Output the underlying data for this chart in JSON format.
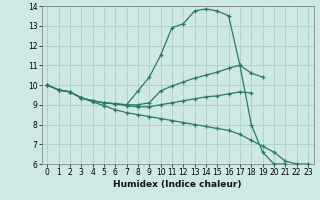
{
  "xlabel": "Humidex (Indice chaleur)",
  "bg_color": "#cde8e5",
  "grid_color": "#aad0cc",
  "line_color": "#2a7a6a",
  "xlim": [
    -0.5,
    23.5
  ],
  "ylim": [
    6,
    14
  ],
  "xticks": [
    0,
    1,
    2,
    3,
    4,
    5,
    6,
    7,
    8,
    9,
    10,
    11,
    12,
    13,
    14,
    15,
    16,
    17,
    18,
    19,
    20,
    21,
    22,
    23
  ],
  "yticks": [
    6,
    7,
    8,
    9,
    10,
    11,
    12,
    13,
    14
  ],
  "tick_fontsize": 5.5,
  "xlabel_fontsize": 6.5,
  "series": [
    {
      "x": [
        0,
        1,
        2,
        3,
        4,
        5,
        6,
        7,
        8,
        9,
        10,
        11,
        12,
        13,
        14,
        15,
        16,
        17,
        18,
        19,
        20,
        21
      ],
      "y": [
        10.0,
        9.75,
        9.65,
        9.35,
        9.2,
        9.1,
        9.05,
        9.0,
        9.7,
        10.4,
        11.5,
        12.9,
        13.1,
        13.75,
        13.85,
        13.75,
        13.5,
        11.0,
        8.0,
        6.6,
        6.0,
        6.0
      ]
    },
    {
      "x": [
        0,
        1,
        2,
        3,
        4,
        5,
        6,
        7,
        8,
        9,
        10,
        11,
        12,
        13,
        14,
        15,
        16,
        17,
        18,
        19
      ],
      "y": [
        10.0,
        9.75,
        9.65,
        9.35,
        9.2,
        9.1,
        9.05,
        9.0,
        9.0,
        9.1,
        9.7,
        9.95,
        10.15,
        10.35,
        10.5,
        10.65,
        10.85,
        11.0,
        10.6,
        10.4
      ]
    },
    {
      "x": [
        0,
        1,
        2,
        3,
        4,
        5,
        6,
        7,
        8,
        9,
        10,
        11,
        12,
        13,
        14,
        15,
        16,
        17,
        18
      ],
      "y": [
        10.0,
        9.75,
        9.65,
        9.35,
        9.2,
        9.1,
        9.05,
        8.95,
        8.9,
        8.9,
        9.0,
        9.1,
        9.2,
        9.3,
        9.4,
        9.45,
        9.55,
        9.65,
        9.6
      ]
    },
    {
      "x": [
        0,
        1,
        2,
        3,
        4,
        5,
        6,
        7,
        8,
        9,
        10,
        11,
        12,
        13,
        14,
        15,
        16,
        17,
        18,
        19,
        20,
        21,
        22,
        23
      ],
      "y": [
        10.0,
        9.75,
        9.65,
        9.35,
        9.15,
        8.95,
        8.75,
        8.6,
        8.5,
        8.4,
        8.3,
        8.2,
        8.1,
        8.0,
        7.9,
        7.8,
        7.7,
        7.5,
        7.2,
        6.9,
        6.6,
        6.15,
        6.0,
        6.0
      ]
    }
  ]
}
